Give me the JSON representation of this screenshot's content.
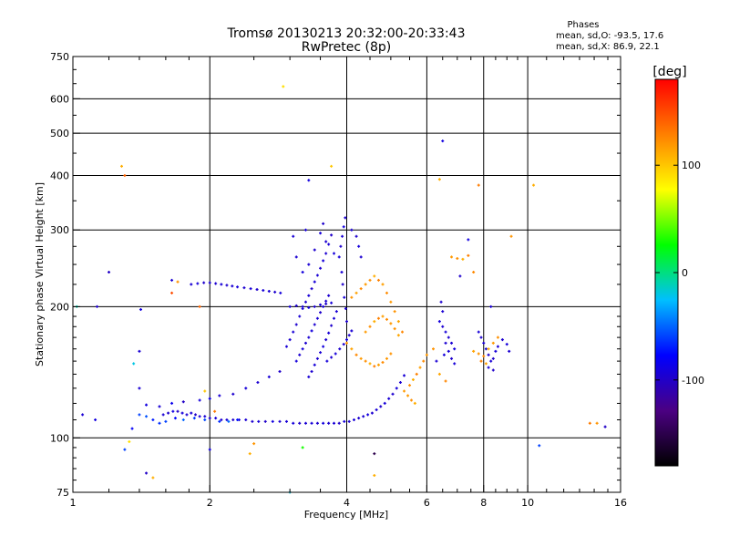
{
  "chart_data": {
    "type": "scatter",
    "title": "Tromsø 20130213 20:32:00-20:33:43",
    "subtitle": "RwPretec (8p)",
    "stats": {
      "heading": "Phases",
      "line_o": "mean, sd,O: -93.5, 17.6",
      "line_x": "mean, sd,X:  86.9, 22.1"
    },
    "xlabel": "Frequency [MHz]",
    "ylabel": "Stationary phase Virtual Height [km]",
    "x_scale": "log",
    "y_scale": "log",
    "xlim": [
      1,
      16
    ],
    "ylim": [
      75,
      750
    ],
    "x_ticks": [
      1,
      2,
      4,
      6,
      8,
      10,
      16
    ],
    "x_tick_labels": [
      "1",
      "2",
      "4",
      "6",
      "8",
      "10",
      "16"
    ],
    "x_grid": [
      2,
      4,
      6,
      8,
      10
    ],
    "y_ticks": [
      75,
      100,
      200,
      300,
      400,
      500,
      600,
      750
    ],
    "y_tick_labels": [
      "75",
      "100",
      "200",
      "300",
      "400",
      "500",
      "600",
      "750"
    ],
    "y_grid": [
      100,
      200,
      300,
      400,
      500,
      600
    ],
    "grid": true,
    "colorbar": {
      "label": "[deg]",
      "range": [
        -180,
        180
      ],
      "ticks": [
        100,
        0,
        -100
      ],
      "tick_labels": [
        "100",
        "0",
        "-100"
      ],
      "colors": [
        "#000000",
        "#4b0082",
        "#0000ff",
        "#00bfff",
        "#00ff00",
        "#ffff00",
        "#ff8000",
        "#ff0000"
      ]
    },
    "points": [
      [
        1.58,
        113,
        -95
      ],
      [
        1.62,
        114,
        -98
      ],
      [
        1.66,
        115,
        -90
      ],
      [
        1.7,
        115,
        -100
      ],
      [
        1.74,
        114,
        -92
      ],
      [
        1.78,
        113,
        -96
      ],
      [
        1.82,
        114,
        -94
      ],
      [
        1.86,
        113,
        -99
      ],
      [
        1.9,
        112,
        -93
      ],
      [
        1.95,
        112,
        -95
      ],
      [
        2.0,
        111,
        -97
      ],
      [
        2.06,
        111,
        -92
      ],
      [
        2.12,
        110,
        -96
      ],
      [
        2.18,
        110,
        -94
      ],
      [
        2.25,
        110,
        -98
      ],
      [
        2.32,
        110,
        -91
      ],
      [
        2.4,
        110,
        -95
      ],
      [
        2.48,
        109,
        -97
      ],
      [
        2.56,
        109,
        -93
      ],
      [
        2.65,
        109,
        -99
      ],
      [
        2.75,
        109,
        -90
      ],
      [
        2.85,
        109,
        -96
      ],
      [
        2.95,
        109,
        -94
      ],
      [
        3.05,
        108,
        -92
      ],
      [
        3.15,
        108,
        -98
      ],
      [
        3.25,
        108,
        -95
      ],
      [
        3.35,
        108,
        -93
      ],
      [
        3.45,
        108,
        -97
      ],
      [
        3.55,
        108,
        -91
      ],
      [
        3.65,
        108,
        -96
      ],
      [
        3.75,
        108,
        -94
      ],
      [
        3.85,
        108,
        -99
      ],
      [
        3.95,
        109,
        -92
      ],
      [
        4.05,
        109,
        -96
      ],
      [
        4.15,
        110,
        -93
      ],
      [
        4.25,
        111,
        -97
      ],
      [
        4.35,
        112,
        -95
      ],
      [
        4.45,
        113,
        -91
      ],
      [
        4.55,
        114,
        -96
      ],
      [
        4.65,
        116,
        -94
      ],
      [
        4.75,
        118,
        -98
      ],
      [
        4.85,
        120,
        -93
      ],
      [
        4.95,
        123,
        -95
      ],
      [
        5.05,
        126,
        -97
      ],
      [
        5.15,
        130,
        -92
      ],
      [
        5.25,
        134,
        -96
      ],
      [
        5.35,
        139,
        -94
      ],
      [
        1.4,
        113,
        -60
      ],
      [
        1.45,
        112,
        -55
      ],
      [
        1.5,
        110,
        -70
      ],
      [
        1.55,
        108,
        -65
      ],
      [
        1.6,
        109,
        -60
      ],
      [
        1.68,
        111,
        -75
      ],
      [
        1.75,
        110,
        -50
      ],
      [
        1.85,
        111,
        -62
      ],
      [
        1.95,
        110,
        -58
      ],
      [
        2.1,
        109,
        -66
      ],
      [
        2.2,
        109,
        -48
      ],
      [
        2.3,
        110,
        -72
      ],
      [
        1.45,
        119,
        -90
      ],
      [
        1.55,
        118,
        -95
      ],
      [
        1.65,
        120,
        -85
      ],
      [
        1.75,
        121,
        -100
      ],
      [
        1.9,
        122,
        -92
      ],
      [
        2.0,
        123,
        -88
      ],
      [
        2.1,
        125,
        -95
      ],
      [
        2.25,
        126,
        -97
      ],
      [
        2.4,
        130,
        -93
      ],
      [
        2.55,
        134,
        -96
      ],
      [
        2.7,
        138,
        -94
      ],
      [
        2.85,
        142,
        -99
      ],
      [
        1.82,
        225,
        -95
      ],
      [
        1.88,
        226,
        -92
      ],
      [
        1.94,
        227,
        -98
      ],
      [
        2.0,
        227,
        -94
      ],
      [
        2.06,
        226,
        -96
      ],
      [
        2.12,
        225,
        -93
      ],
      [
        2.18,
        224,
        -97
      ],
      [
        2.24,
        223,
        -95
      ],
      [
        2.3,
        222,
        -92
      ],
      [
        2.38,
        221,
        -96
      ],
      [
        2.46,
        220,
        -94
      ],
      [
        2.54,
        219,
        -98
      ],
      [
        2.62,
        218,
        -93
      ],
      [
        2.7,
        217,
        -95
      ],
      [
        2.78,
        216,
        -97
      ],
      [
        2.86,
        215,
        -92
      ],
      [
        2.95,
        162,
        -94
      ],
      [
        3.0,
        168,
        -96
      ],
      [
        3.05,
        175,
        -93
      ],
      [
        3.1,
        182,
        -97
      ],
      [
        3.15,
        190,
        -95
      ],
      [
        3.2,
        198,
        -91
      ],
      [
        3.25,
        205,
        -96
      ],
      [
        3.3,
        212,
        -94
      ],
      [
        3.35,
        220,
        -98
      ],
      [
        3.4,
        228,
        -93
      ],
      [
        3.45,
        236,
        -95
      ],
      [
        3.5,
        245,
        -97
      ],
      [
        3.55,
        255,
        -92
      ],
      [
        3.6,
        265,
        -96
      ],
      [
        3.65,
        278,
        -94
      ],
      [
        3.7,
        292,
        -99
      ],
      [
        3.1,
        150,
        -92
      ],
      [
        3.15,
        155,
        -96
      ],
      [
        3.2,
        160,
        -93
      ],
      [
        3.25,
        165,
        -97
      ],
      [
        3.3,
        170,
        -95
      ],
      [
        3.35,
        176,
        -91
      ],
      [
        3.4,
        182,
        -96
      ],
      [
        3.45,
        188,
        -94
      ],
      [
        3.5,
        194,
        -98
      ],
      [
        3.55,
        200,
        -93
      ],
      [
        3.6,
        206,
        -95
      ],
      [
        3.65,
        212,
        -97
      ],
      [
        3.3,
        138,
        -94
      ],
      [
        3.35,
        142,
        -96
      ],
      [
        3.4,
        147,
        -93
      ],
      [
        3.45,
        152,
        -97
      ],
      [
        3.5,
        157,
        -95
      ],
      [
        3.55,
        162,
        -91
      ],
      [
        3.6,
        168,
        -96
      ],
      [
        3.65,
        174,
        -94
      ],
      [
        3.7,
        181,
        -98
      ],
      [
        3.75,
        188,
        -93
      ],
      [
        3.8,
        195,
        -95
      ],
      [
        3.0,
        200,
        -93
      ],
      [
        3.1,
        201,
        -97
      ],
      [
        3.2,
        200,
        -95
      ],
      [
        3.3,
        199,
        -91
      ],
      [
        3.4,
        200,
        -96
      ],
      [
        3.5,
        202,
        -94
      ],
      [
        3.6,
        203,
        -98
      ],
      [
        3.7,
        204,
        -93
      ],
      [
        3.62,
        150,
        -92
      ],
      [
        3.7,
        153,
        -96
      ],
      [
        3.78,
        156,
        -93
      ],
      [
        3.86,
        160,
        -97
      ],
      [
        3.94,
        164,
        -95
      ],
      [
        4.0,
        168,
        -91
      ],
      [
        4.05,
        172,
        -96
      ],
      [
        4.1,
        176,
        -94
      ],
      [
        3.85,
        260,
        -93
      ],
      [
        3.88,
        275,
        -97
      ],
      [
        3.91,
        290,
        -95
      ],
      [
        3.94,
        305,
        -91
      ],
      [
        3.97,
        320,
        -96
      ],
      [
        3.9,
        240,
        -94
      ],
      [
        3.92,
        225,
        -98
      ],
      [
        3.95,
        210,
        -93
      ],
      [
        3.98,
        198,
        -95
      ],
      [
        4.0,
        185,
        -97
      ],
      [
        3.75,
        265,
        -92
      ],
      [
        3.6,
        282,
        -96
      ],
      [
        3.5,
        295,
        -93
      ],
      [
        3.4,
        270,
        -97
      ],
      [
        3.3,
        250,
        -95
      ],
      [
        3.2,
        240,
        -91
      ],
      [
        3.1,
        260,
        -96
      ],
      [
        3.05,
        290,
        -94
      ],
      [
        3.55,
        310,
        -98
      ],
      [
        3.25,
        300,
        -93
      ],
      [
        4.1,
        300,
        -95
      ],
      [
        4.2,
        290,
        -97
      ],
      [
        4.25,
        275,
        -92
      ],
      [
        4.3,
        260,
        -96
      ],
      [
        4.1,
        210,
        120
      ],
      [
        4.2,
        215,
        115
      ],
      [
        4.3,
        220,
        125
      ],
      [
        4.4,
        225,
        118
      ],
      [
        4.5,
        230,
        122
      ],
      [
        4.6,
        235,
        110
      ],
      [
        4.7,
        230,
        128
      ],
      [
        4.8,
        225,
        116
      ],
      [
        4.9,
        215,
        124
      ],
      [
        5.0,
        205,
        119
      ],
      [
        5.1,
        195,
        121
      ],
      [
        5.2,
        185,
        113
      ],
      [
        5.3,
        175,
        126
      ],
      [
        4.4,
        175,
        118
      ],
      [
        4.5,
        180,
        122
      ],
      [
        4.6,
        185,
        110
      ],
      [
        4.7,
        188,
        128
      ],
      [
        4.8,
        190,
        116
      ],
      [
        4.9,
        187,
        124
      ],
      [
        5.0,
        183,
        119
      ],
      [
        5.1,
        178,
        121
      ],
      [
        5.2,
        172,
        113
      ],
      [
        4.0,
        165,
        120
      ],
      [
        4.1,
        160,
        115
      ],
      [
        4.2,
        155,
        125
      ],
      [
        4.3,
        152,
        118
      ],
      [
        4.4,
        150,
        122
      ],
      [
        4.5,
        148,
        110
      ],
      [
        4.6,
        146,
        128
      ],
      [
        4.7,
        147,
        116
      ],
      [
        4.8,
        149,
        124
      ],
      [
        4.9,
        152,
        119
      ],
      [
        5.0,
        156,
        121
      ],
      [
        5.35,
        128,
        118
      ],
      [
        5.5,
        132,
        122
      ],
      [
        5.6,
        136,
        110
      ],
      [
        5.7,
        140,
        128
      ],
      [
        5.8,
        145,
        116
      ],
      [
        5.9,
        150,
        124
      ],
      [
        6.0,
        155,
        119
      ],
      [
        6.2,
        160,
        121
      ],
      [
        6.4,
        140,
        113
      ],
      [
        6.6,
        135,
        126
      ],
      [
        5.45,
        125,
        118
      ],
      [
        5.55,
        122,
        122
      ],
      [
        5.65,
        120,
        110
      ],
      [
        6.4,
        185,
        -92
      ],
      [
        6.5,
        180,
        -96
      ],
      [
        6.6,
        175,
        -93
      ],
      [
        6.7,
        170,
        -97
      ],
      [
        6.8,
        165,
        -95
      ],
      [
        6.9,
        160,
        -91
      ],
      [
        6.6,
        165,
        -96
      ],
      [
        6.7,
        158,
        -94
      ],
      [
        6.8,
        152,
        -98
      ],
      [
        6.9,
        148,
        -93
      ],
      [
        6.5,
        195,
        -95
      ],
      [
        6.45,
        205,
        -97
      ],
      [
        6.55,
        155,
        -92
      ],
      [
        7.8,
        175,
        -93
      ],
      [
        7.9,
        170,
        -97
      ],
      [
        8.0,
        165,
        -95
      ],
      [
        8.1,
        160,
        -91
      ],
      [
        8.2,
        155,
        -96
      ],
      [
        8.3,
        150,
        -94
      ],
      [
        8.4,
        152,
        -98
      ],
      [
        8.5,
        158,
        -93
      ],
      [
        8.6,
        162,
        -95
      ],
      [
        8.8,
        168,
        -97
      ],
      [
        9.0,
        164,
        -92
      ],
      [
        9.1,
        158,
        -96
      ],
      [
        8.2,
        145,
        -94
      ],
      [
        8.4,
        143,
        -99
      ],
      [
        7.6,
        158,
        115
      ],
      [
        7.8,
        156,
        120
      ],
      [
        8.0,
        154,
        125
      ],
      [
        8.2,
        160,
        110
      ],
      [
        8.4,
        165,
        118
      ],
      [
        8.6,
        170,
        122
      ],
      [
        7.9,
        150,
        128
      ],
      [
        8.1,
        148,
        116
      ],
      [
        6.8,
        260,
        118
      ],
      [
        7.0,
        258,
        122
      ],
      [
        7.2,
        257,
        110
      ],
      [
        7.4,
        262,
        128
      ],
      [
        1.05,
        113,
        -95
      ],
      [
        1.12,
        110,
        -90
      ],
      [
        1.3,
        94,
        -60
      ],
      [
        1.33,
        98,
        90
      ],
      [
        1.45,
        83,
        -100
      ],
      [
        1.5,
        81,
        110
      ],
      [
        1.35,
        105,
        -80
      ],
      [
        1.4,
        130,
        -95
      ],
      [
        1.36,
        148,
        -20
      ],
      [
        1.4,
        158,
        -95
      ],
      [
        1.41,
        197,
        -90
      ],
      [
        1.65,
        230,
        -95
      ],
      [
        1.3,
        400,
        140
      ],
      [
        1.28,
        420,
        110
      ],
      [
        1.2,
        240,
        -100
      ],
      [
        1.02,
        200,
        -10
      ],
      [
        1.13,
        200,
        -98
      ],
      [
        1.65,
        215,
        150
      ],
      [
        1.7,
        228,
        120
      ],
      [
        1.9,
        200,
        140
      ],
      [
        1.95,
        128,
        100
      ],
      [
        2.05,
        115,
        130
      ],
      [
        2.9,
        640,
        90
      ],
      [
        3.3,
        390,
        -90
      ],
      [
        3.7,
        420,
        100
      ],
      [
        3.0,
        75,
        -20
      ],
      [
        3.2,
        95,
        30
      ],
      [
        2.0,
        94,
        -90
      ],
      [
        2.45,
        92,
        110
      ],
      [
        2.5,
        97,
        120
      ],
      [
        4.6,
        82,
        110
      ],
      [
        4.6,
        92,
        -150
      ],
      [
        6.4,
        392,
        110
      ],
      [
        6.5,
        480,
        -90
      ],
      [
        7.8,
        380,
        130
      ],
      [
        8.3,
        200,
        -95
      ],
      [
        9.2,
        290,
        120
      ],
      [
        7.1,
        235,
        -98
      ],
      [
        7.6,
        240,
        125
      ],
      [
        6.3,
        150,
        -95
      ],
      [
        7.4,
        285,
        -90
      ],
      [
        10.6,
        96,
        -60
      ],
      [
        10.3,
        380,
        110
      ],
      [
        13.7,
        108,
        130
      ],
      [
        14.2,
        108,
        120
      ],
      [
        14.8,
        106,
        -100
      ]
    ]
  }
}
